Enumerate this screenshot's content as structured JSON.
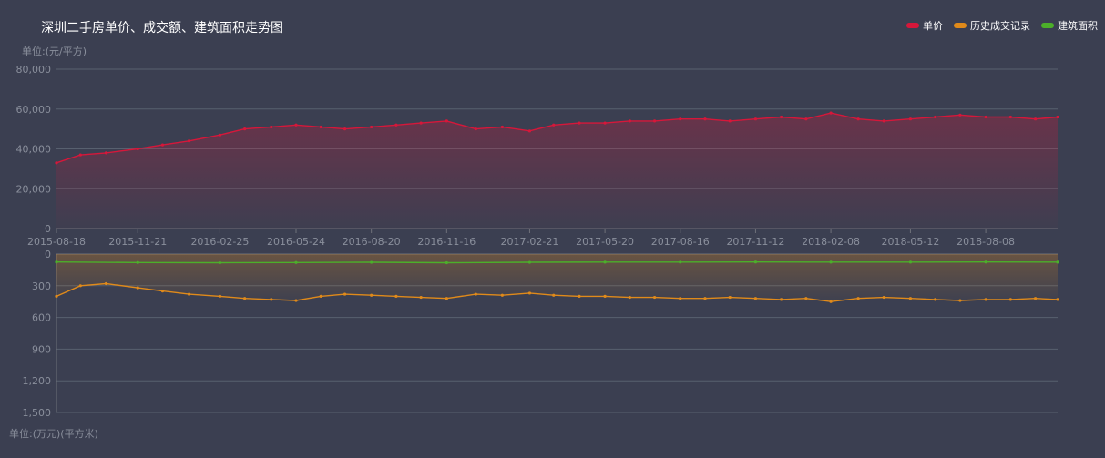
{
  "title": "深圳二手房单价、成交额、建筑面积走势图",
  "legend": [
    {
      "label": "单价",
      "color": "#d6173a"
    },
    {
      "label": "历史成交记录",
      "color": "#e08a1a"
    },
    {
      "label": "建筑面积",
      "color": "#4caf2a"
    }
  ],
  "chart_data": [
    {
      "type": "line",
      "title": "深圳二手房单价、成交额、建筑面积走势图",
      "ylabel": "单位:(元/平方)",
      "ylim": [
        0,
        80000
      ],
      "y_ticks": [
        "0",
        "20,000",
        "40,000",
        "60,000",
        "80,000"
      ],
      "y_tick_values": [
        0,
        20000,
        40000,
        60000,
        80000
      ],
      "x_range": [
        "2015-08-18",
        "2018-10-31"
      ],
      "x_ticks": [
        "2015-08-18",
        "2015-11-21",
        "2016-02-25",
        "2016-05-24",
        "2016-08-20",
        "2016-11-16",
        "2017-02-21",
        "2017-05-20",
        "2017-08-16",
        "2017-11-12",
        "2018-02-08",
        "2018-05-12",
        "2018-08-08"
      ],
      "series": [
        {
          "name": "单价",
          "color": "#d6173a",
          "area": true,
          "x": [
            "2015-08-18",
            "2015-09-15",
            "2015-10-15",
            "2015-11-21",
            "2015-12-20",
            "2016-01-20",
            "2016-02-25",
            "2016-03-25",
            "2016-04-25",
            "2016-05-24",
            "2016-06-22",
            "2016-07-20",
            "2016-08-20",
            "2016-09-18",
            "2016-10-17",
            "2016-11-16",
            "2016-12-20",
            "2017-01-20",
            "2017-02-21",
            "2017-03-21",
            "2017-04-20",
            "2017-05-20",
            "2017-06-18",
            "2017-07-17",
            "2017-08-16",
            "2017-09-14",
            "2017-10-13",
            "2017-11-12",
            "2017-12-12",
            "2018-01-10",
            "2018-02-08",
            "2018-03-12",
            "2018-04-11",
            "2018-05-12",
            "2018-06-10",
            "2018-07-09",
            "2018-08-08",
            "2018-09-06",
            "2018-10-05",
            "2018-10-31"
          ],
          "values": [
            33000,
            37000,
            38000,
            40000,
            42000,
            44000,
            47000,
            50000,
            51000,
            52000,
            51000,
            50000,
            51000,
            52000,
            53000,
            54000,
            50000,
            51000,
            49000,
            52000,
            53000,
            53000,
            54000,
            54000,
            55000,
            55000,
            54000,
            55000,
            56000,
            55000,
            58000,
            55000,
            54000,
            55000,
            56000,
            57000,
            56000,
            56000,
            55000,
            56000
          ]
        }
      ]
    },
    {
      "type": "line",
      "ylabel": "单位:(万元)(平方米)",
      "ylim": [
        0,
        1500
      ],
      "y_inverted": true,
      "y_ticks": [
        "0",
        "300",
        "600",
        "900",
        "1,200",
        "1,500"
      ],
      "y_tick_values": [
        0,
        300,
        600,
        900,
        1200,
        1500
      ],
      "x_range": [
        "2015-08-18",
        "2018-10-31"
      ],
      "series": [
        {
          "name": "历史成交记录",
          "color": "#e08a1a",
          "area": true,
          "x": [
            "2015-08-18",
            "2015-09-15",
            "2015-10-15",
            "2015-11-21",
            "2015-12-20",
            "2016-01-20",
            "2016-02-25",
            "2016-03-25",
            "2016-04-25",
            "2016-05-24",
            "2016-06-22",
            "2016-07-20",
            "2016-08-20",
            "2016-09-18",
            "2016-10-17",
            "2016-11-16",
            "2016-12-20",
            "2017-01-20",
            "2017-02-21",
            "2017-03-21",
            "2017-04-20",
            "2017-05-20",
            "2017-06-18",
            "2017-07-17",
            "2017-08-16",
            "2017-09-14",
            "2017-10-13",
            "2017-11-12",
            "2017-12-12",
            "2018-01-10",
            "2018-02-08",
            "2018-03-12",
            "2018-04-11",
            "2018-05-12",
            "2018-06-10",
            "2018-07-09",
            "2018-08-08",
            "2018-09-06",
            "2018-10-05",
            "2018-10-31"
          ],
          "values": [
            400,
            300,
            280,
            320,
            350,
            380,
            400,
            420,
            430,
            440,
            400,
            380,
            390,
            400,
            410,
            420,
            380,
            390,
            370,
            390,
            400,
            400,
            410,
            410,
            420,
            420,
            410,
            420,
            430,
            420,
            450,
            420,
            410,
            420,
            430,
            440,
            430,
            430,
            420,
            430
          ]
        },
        {
          "name": "建筑面积",
          "color": "#4caf2a",
          "area": false,
          "x": [
            "2015-08-18",
            "2015-11-21",
            "2016-02-25",
            "2016-05-24",
            "2016-08-20",
            "2016-11-16",
            "2017-02-21",
            "2017-05-20",
            "2017-08-16",
            "2017-11-12",
            "2018-02-08",
            "2018-05-12",
            "2018-08-08",
            "2018-10-31"
          ],
          "values": [
            75,
            80,
            82,
            80,
            78,
            82,
            78,
            76,
            76,
            75,
            76,
            76,
            75,
            76
          ]
        }
      ]
    }
  ]
}
